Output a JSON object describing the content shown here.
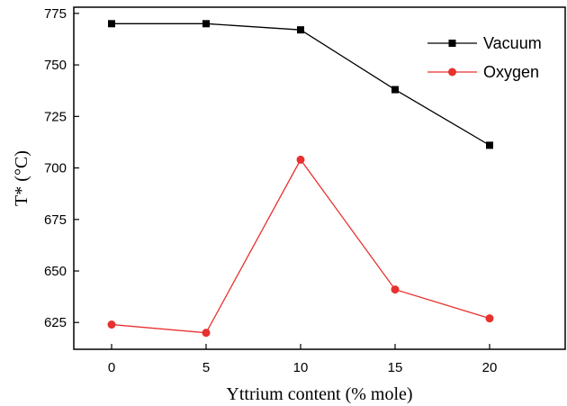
{
  "chart_data": {
    "type": "line",
    "xlabel": "Yttrium content (% mole)",
    "ylabel": "T* (°C)",
    "x": [
      0,
      5,
      10,
      15,
      20
    ],
    "xlim": [
      -2,
      24
    ],
    "ylim": [
      612,
      778
    ],
    "x_ticks": [
      0,
      5,
      10,
      15,
      20
    ],
    "y_ticks": [
      625,
      650,
      675,
      700,
      725,
      750,
      775
    ],
    "grid": false,
    "legend_position": "top-right",
    "series": [
      {
        "name": "Vacuum",
        "values": [
          770,
          770,
          767,
          738,
          711
        ],
        "color": "#000000",
        "marker": "square"
      },
      {
        "name": "Oxygen",
        "values": [
          624,
          620,
          704,
          641,
          627
        ],
        "color": "#e8312f",
        "marker": "circle"
      }
    ]
  }
}
